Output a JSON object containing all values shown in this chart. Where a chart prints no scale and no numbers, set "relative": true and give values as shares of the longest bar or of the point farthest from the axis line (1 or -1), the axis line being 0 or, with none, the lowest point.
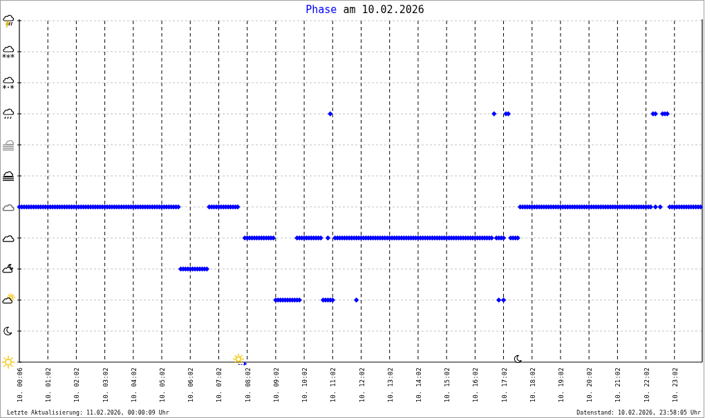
{
  "chart_data": {
    "type": "scatter",
    "title": "Phase am 10.02.2026",
    "marker": "diamond",
    "grid": true,
    "relative": true,
    "categories": [
      "10. 00:06",
      null,
      null,
      null,
      null,
      null,
      null,
      null,
      null,
      null,
      null,
      null,
      "10. 01:02",
      null,
      null,
      null,
      null,
      null,
      null,
      null,
      null,
      null,
      null,
      null,
      "10. 02:02",
      null,
      null,
      null,
      null,
      null,
      null,
      null,
      null,
      null,
      null,
      null,
      "10. 03:02",
      null,
      null,
      null,
      null,
      null,
      null,
      null,
      null,
      null,
      null,
      null,
      "10. 04:02",
      null,
      null,
      null,
      null,
      null,
      null,
      null,
      null,
      null,
      null,
      null,
      "10. 05:02",
      null,
      null,
      null,
      null,
      null,
      null,
      null,
      null,
      null,
      null,
      null,
      "10. 06:02",
      null,
      null,
      null,
      null,
      null,
      null,
      null,
      null,
      null,
      null,
      null,
      "10. 07:02",
      null,
      null,
      null,
      null,
      null,
      null,
      null,
      null,
      null,
      null,
      null,
      "10. 08:02",
      null,
      null,
      null,
      null,
      null,
      null,
      null,
      null,
      null,
      null,
      null,
      "10. 09:02",
      null,
      null,
      null,
      null,
      null,
      null,
      null,
      null,
      null,
      null,
      null,
      "10. 10:02",
      null,
      null,
      null,
      null,
      null,
      null,
      null,
      null,
      null,
      null,
      null,
      "10. 11:02",
      null,
      null,
      null,
      null,
      null,
      null,
      null,
      null,
      null,
      null,
      null,
      "10. 12:02",
      null,
      null,
      null,
      null,
      null,
      null,
      null,
      null,
      null,
      null,
      null,
      "10. 13:02",
      null,
      null,
      null,
      null,
      null,
      null,
      null,
      null,
      null,
      null,
      null,
      "10. 14:02",
      null,
      null,
      null,
      null,
      null,
      null,
      null,
      null,
      null,
      null,
      null,
      "10. 15:02",
      null,
      null,
      null,
      null,
      null,
      null,
      null,
      null,
      null,
      null,
      null,
      "10. 16:02",
      null,
      null,
      null,
      null,
      null,
      null,
      null,
      null,
      null,
      null,
      null,
      "10. 17:02",
      null,
      null,
      null,
      null,
      null,
      null,
      null,
      null,
      null,
      null,
      null,
      "10. 18:02",
      null,
      null,
      null,
      null,
      null,
      null,
      null,
      null,
      null,
      null,
      null,
      "10. 19:02",
      null,
      null,
      null,
      null,
      null,
      null,
      null,
      null,
      null,
      null,
      null,
      "10. 20:02",
      null,
      null,
      null,
      null,
      null,
      null,
      null,
      null,
      null,
      null,
      null,
      "10. 21:02",
      null,
      null,
      null,
      null,
      null,
      null,
      null,
      null,
      null,
      null,
      null,
      "10. 22:02",
      null,
      null,
      null,
      null,
      null,
      null,
      null,
      null,
      null,
      null,
      null,
      "10. 23:02",
      null,
      null,
      null,
      null,
      null,
      null,
      null,
      null,
      null,
      null,
      null
    ],
    "series": [
      {
        "color": "#0000ff",
        "values": [
          0.625,
          0.625,
          0.625,
          0.625,
          0.625,
          0.625,
          0.625,
          0.625,
          0.625,
          0.625,
          0.625,
          0.625,
          0.625,
          0.625,
          0.625,
          0.625,
          0.625,
          0.625,
          0.625,
          0.625,
          0.625,
          0.625,
          0.625,
          0.625,
          0.625,
          0.625,
          0.625,
          0.625,
          0.625,
          0.625,
          0.625,
          0.625,
          0.625,
          0.625,
          0.625,
          0.625,
          0.625,
          0.625,
          0.625,
          0.625,
          0.625,
          0.625,
          0.625,
          0.625,
          0.625,
          0.625,
          0.625,
          0.625,
          0.625,
          0.625,
          0.625,
          0.625,
          0.625,
          0.625,
          0.625,
          0.625,
          0.625,
          0.625,
          0.625,
          0.625,
          0.625,
          0.625,
          0.625,
          0.625,
          0.625,
          0.625,
          0.625,
          0.625,
          0.375,
          0.375,
          0.375,
          0.375,
          0.375,
          0.375,
          0.375,
          0.375,
          0.375,
          0.375,
          0.375,
          0.375,
          0.625,
          0.625,
          0.625,
          0.625,
          0.625,
          0.625,
          0.625,
          0.625,
          0.625,
          0.625,
          0.625,
          0.625,
          0.625,
          null,
          null,
          0.5,
          0.5,
          0.5,
          0.5,
          0.5,
          0.5,
          0.5,
          0.5,
          0.5,
          0.5,
          0.5,
          0.5,
          0.5,
          0.25,
          0.25,
          0.25,
          0.25,
          0.25,
          0.25,
          0.25,
          0.25,
          0.25,
          0.25,
          0.25,
          0.5,
          0.5,
          0.5,
          0.5,
          0.5,
          0.5,
          0.5,
          0.5,
          0.5,
          0.25,
          0.25,
          0.25,
          0.25,
          0.25,
          0.5,
          0.5,
          0.5,
          0.5,
          0.5,
          0.5,
          0.5,
          0.5,
          0.5,
          0.5,
          0.5,
          0.5,
          0.5,
          0.5,
          0.5,
          0.5,
          0.5,
          0.5,
          0.5,
          0.5,
          0.5,
          0.5,
          0.5,
          0.5,
          0.5,
          0.5,
          0.5,
          0.5,
          0.5,
          0.5,
          0.5,
          0.5,
          0.5,
          0.5,
          0.5,
          0.5,
          0.5,
          0.5,
          0.5,
          0.5,
          0.5,
          0.5,
          0.5,
          0.5,
          0.5,
          0.5,
          0.5,
          0.5,
          0.5,
          0.5,
          0.5,
          0.5,
          0.5,
          0.5,
          0.5,
          0.5,
          0.5,
          0.5,
          0.5,
          0.5,
          0.5,
          0.5,
          0.5,
          0.5,
          0.5,
          0.5,
          0.5,
          1,
          0.5,
          0.5,
          0.5,
          0.5,
          1,
          1,
          0.5,
          0.5,
          0.5,
          0.5,
          0.625,
          0.625,
          0.625,
          0.625,
          0.625,
          0.625,
          0.625,
          0.625,
          0.625,
          0.625,
          0.625,
          0.625,
          0.625,
          0.625,
          0.625,
          0.625,
          0.625,
          0.625,
          0.625,
          0.625,
          0.625,
          0.625,
          0.625,
          0.625,
          0.625,
          0.625,
          0.625,
          0.625,
          0.625,
          0.625,
          0.625,
          0.625,
          0.625,
          0.625,
          0.625,
          0.625,
          0.625,
          0.625,
          0.625,
          0.625,
          0.625,
          0.625,
          0.625,
          0.625,
          0.625,
          0.625,
          0.625,
          0.625,
          0.625,
          0.625,
          0.625,
          0.625,
          0.625,
          0.625,
          0.625,
          0.625,
          1,
          1,
          null,
          0.625,
          1,
          1,
          1,
          0.625,
          0.625,
          0.625,
          0.625,
          0.625,
          0.625,
          0.625,
          0.625,
          0.625,
          0.625,
          0.625,
          0.625,
          0.625,
          0.625
        ]
      },
      {
        "color": "#0000ff",
        "values": [
          null,
          null,
          null,
          null,
          null,
          null,
          null,
          null,
          null,
          null,
          null,
          null,
          null,
          null,
          null,
          null,
          null,
          null,
          null,
          null,
          null,
          null,
          null,
          null,
          null,
          null,
          null,
          null,
          null,
          null,
          null,
          null,
          null,
          null,
          null,
          null,
          null,
          null,
          null,
          null,
          null,
          null,
          null,
          null,
          null,
          null,
          null,
          null,
          null,
          null,
          null,
          null,
          null,
          null,
          null,
          null,
          null,
          null,
          null,
          null,
          null,
          null,
          null,
          null,
          null,
          null,
          null,
          null,
          null,
          null,
          null,
          null,
          null,
          null,
          null,
          null,
          null,
          null,
          null,
          null,
          null,
          null,
          null,
          null,
          null,
          null,
          null,
          null,
          null,
          null,
          null,
          null,
          null,
          null,
          null,
          null,
          null,
          null,
          null,
          null,
          null,
          null,
          null,
          null,
          null,
          null,
          null,
          null,
          null,
          null,
          null,
          null,
          null,
          null,
          null,
          null,
          null,
          0.5,
          0.5,
          null,
          null,
          null,
          null,
          null,
          null,
          null,
          null,
          null,
          null,
          null,
          0.5,
          1,
          null,
          null,
          null,
          null,
          null,
          null,
          null,
          null,
          null,
          null,
          0.25,
          null,
          null,
          null,
          null,
          null,
          null,
          null,
          null,
          null,
          null,
          null,
          null,
          null,
          null,
          null,
          null,
          null,
          null,
          null,
          null,
          null,
          null,
          null,
          null,
          null,
          null,
          null,
          null,
          null,
          null,
          null,
          null,
          null,
          null,
          null,
          null,
          null,
          null,
          null,
          null,
          null,
          null,
          null,
          null,
          null,
          null,
          null,
          null,
          null,
          null,
          null,
          null,
          null,
          null,
          null,
          null,
          null,
          null,
          null,
          0.25,
          null,
          0.25,
          null,
          null,
          null,
          null,
          null,
          null,
          null,
          null,
          null,
          null,
          null,
          null,
          null,
          null,
          null,
          null,
          null,
          null,
          null,
          null,
          null,
          null,
          null,
          null,
          null,
          null,
          null,
          null,
          null,
          null,
          null,
          null,
          null,
          null,
          null,
          null,
          null,
          null,
          null,
          null,
          null,
          null,
          null,
          null,
          null,
          null,
          null,
          null,
          null,
          null,
          null,
          null,
          null,
          null,
          null,
          null,
          null,
          null,
          null,
          null,
          null,
          null,
          null,
          0.625,
          null,
          null,
          null,
          null,
          null,
          null,
          null,
          null,
          null,
          null,
          null,
          null,
          null,
          null,
          null,
          null,
          null,
          null,
          null
        ]
      }
    ],
    "annotations": [
      "Letzte Aktualisierung: 11.02.2026, 00:00:09 Uhr",
      "Datenstand: 10.02.2026, 23:58:05 Uhr"
    ]
  }
}
